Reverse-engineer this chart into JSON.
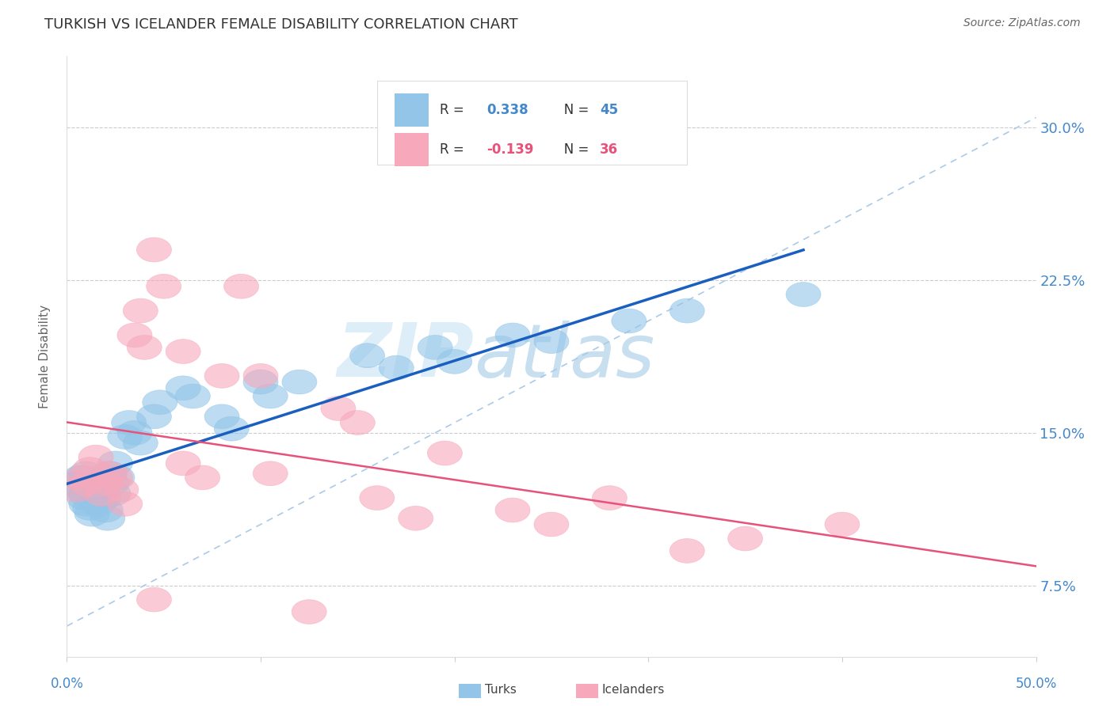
{
  "title": "TURKISH VS ICELANDER FEMALE DISABILITY CORRELATION CHART",
  "source": "Source: ZipAtlas.com",
  "ylabel": "Female Disability",
  "y_ticks": [
    0.075,
    0.15,
    0.225,
    0.3
  ],
  "y_tick_labels": [
    "7.5%",
    "15.0%",
    "22.5%",
    "30.0%"
  ],
  "xlim": [
    0.0,
    0.5
  ],
  "ylim": [
    0.04,
    0.335
  ],
  "turks_R": 0.338,
  "turks_N": 45,
  "icelanders_R": -0.139,
  "icelanders_N": 36,
  "turks_color": "#92C5E8",
  "icelanders_color": "#F7A8BB",
  "turks_line_color": "#1A5FBF",
  "icelanders_line_color": "#E8527A",
  "diagonal_color": "#AACAE8",
  "turks_x": [
    0.005,
    0.007,
    0.008,
    0.009,
    0.01,
    0.01,
    0.01,
    0.01,
    0.012,
    0.013,
    0.015,
    0.015,
    0.016,
    0.017,
    0.018,
    0.019,
    0.02,
    0.021,
    0.022,
    0.023,
    0.024,
    0.025,
    0.026,
    0.03,
    0.032,
    0.035,
    0.038,
    0.045,
    0.048,
    0.06,
    0.065,
    0.08,
    0.085,
    0.1,
    0.105,
    0.12,
    0.155,
    0.17,
    0.19,
    0.2,
    0.23,
    0.25,
    0.29,
    0.32,
    0.38
  ],
  "turks_y": [
    0.125,
    0.128,
    0.122,
    0.118,
    0.115,
    0.12,
    0.125,
    0.13,
    0.113,
    0.11,
    0.118,
    0.123,
    0.115,
    0.12,
    0.125,
    0.118,
    0.112,
    0.108,
    0.13,
    0.125,
    0.12,
    0.135,
    0.128,
    0.148,
    0.155,
    0.15,
    0.145,
    0.158,
    0.165,
    0.172,
    0.168,
    0.158,
    0.152,
    0.175,
    0.168,
    0.175,
    0.188,
    0.182,
    0.192,
    0.185,
    0.198,
    0.195,
    0.205,
    0.21,
    0.218
  ],
  "icelanders_x": [
    0.005,
    0.008,
    0.01,
    0.012,
    0.015,
    0.018,
    0.02,
    0.022,
    0.025,
    0.028,
    0.03,
    0.035,
    0.038,
    0.04,
    0.045,
    0.05,
    0.06,
    0.07,
    0.09,
    0.1,
    0.14,
    0.15,
    0.23,
    0.32,
    0.4,
    0.105,
    0.16,
    0.18,
    0.25,
    0.35,
    0.06,
    0.08,
    0.195,
    0.28,
    0.045,
    0.125
  ],
  "icelanders_y": [
    0.122,
    0.128,
    0.125,
    0.132,
    0.138,
    0.12,
    0.125,
    0.13,
    0.128,
    0.122,
    0.115,
    0.198,
    0.21,
    0.192,
    0.24,
    0.222,
    0.135,
    0.128,
    0.222,
    0.178,
    0.162,
    0.155,
    0.112,
    0.092,
    0.105,
    0.13,
    0.118,
    0.108,
    0.105,
    0.098,
    0.19,
    0.178,
    0.14,
    0.118,
    0.068,
    0.062
  ],
  "watermark_zip": "ZIP",
  "watermark_atlas": "atlas"
}
